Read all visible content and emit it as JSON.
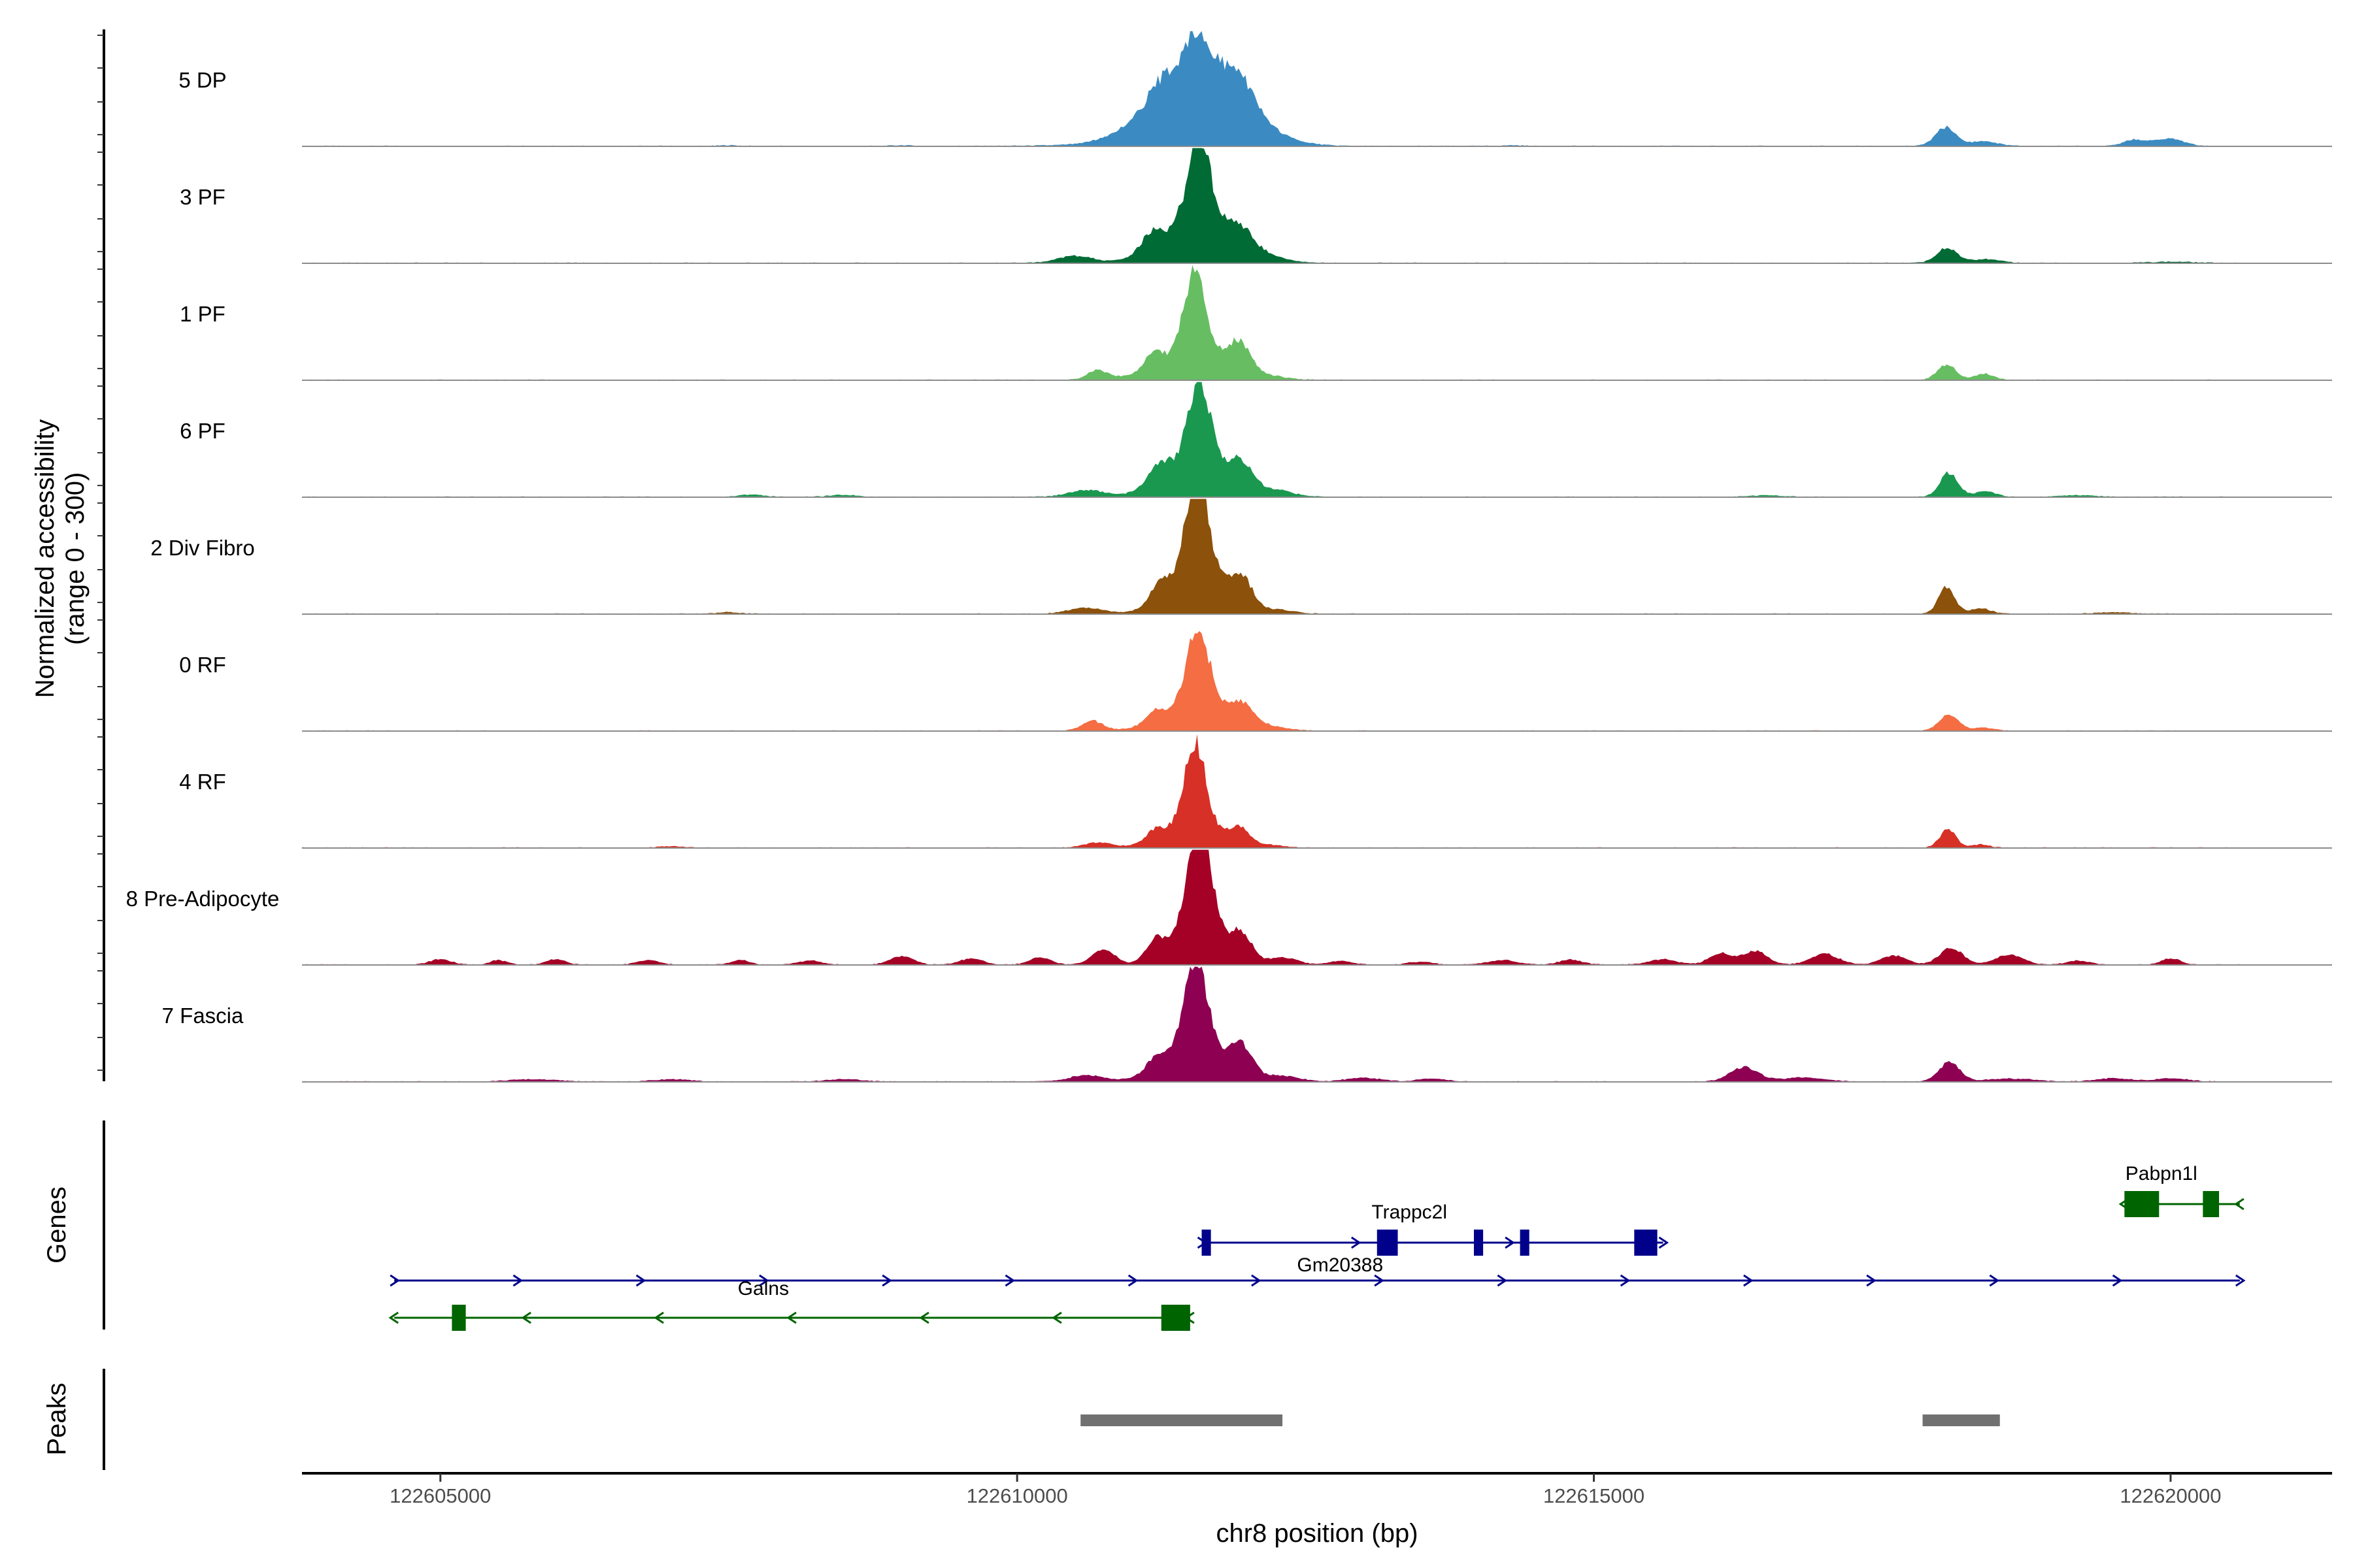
{
  "chart_data": {
    "type": "area",
    "ylabel_line1": "Normalized accessibility",
    "ylabel_line2": "(range 0 - 300)",
    "xlabel": "chr8 position (bp)",
    "xlim": [
      122603800,
      122621400
    ],
    "ylim": [
      0,
      300
    ],
    "x_ticks": [
      122605000,
      122610000,
      122615000,
      122620000
    ],
    "x_tick_labels": [
      "122605000",
      "122610000",
      "122615000",
      "122620000"
    ],
    "tracks": [
      {
        "name": "5 DP",
        "color": "#3B8BC2",
        "peaks": [
          [
            122610400,
            1.2,
            380
          ],
          [
            122611220,
            30,
            90
          ],
          [
            122611550,
            200,
            380
          ],
          [
            122611550,
            105,
            110
          ],
          [
            122611920,
            72,
            120
          ],
          [
            122612200,
            6,
            200
          ],
          [
            122607500,
            2,
            80
          ],
          [
            122609000,
            2,
            80
          ],
          [
            122614300,
            2,
            80
          ],
          [
            122618050,
            48,
            90
          ],
          [
            122618380,
            12,
            120
          ],
          [
            122619700,
            16,
            110
          ],
          [
            122620000,
            18,
            120
          ]
        ]
      },
      {
        "name": "3 PF",
        "color": "#006B35",
        "peaks": [
          [
            122610500,
            18,
            150
          ],
          [
            122611160,
            40,
            80
          ],
          [
            122611580,
            208,
            95
          ],
          [
            122611580,
            120,
            300
          ],
          [
            122611950,
            42,
            100
          ],
          [
            122612200,
            8,
            150
          ],
          [
            122618060,
            38,
            90
          ],
          [
            122618400,
            10,
            120
          ],
          [
            122620000,
            3,
            200
          ]
        ]
      },
      {
        "name": "1 PF",
        "color": "#67BE62",
        "peaks": [
          [
            122610700,
            24,
            90
          ],
          [
            122611180,
            35,
            70
          ],
          [
            122611540,
            204,
            90
          ],
          [
            122611540,
            80,
            300
          ],
          [
            122611930,
            68,
            90
          ],
          [
            122612200,
            6,
            150
          ],
          [
            122618060,
            40,
            80
          ],
          [
            122618380,
            16,
            80
          ]
        ]
      },
      {
        "name": "6 PF",
        "color": "#1A9850",
        "peaks": [
          [
            122610600,
            18,
            150
          ],
          [
            122611230,
            40,
            100
          ],
          [
            122611580,
            200,
            95
          ],
          [
            122611580,
            100,
            280
          ],
          [
            122611950,
            55,
            90
          ],
          [
            122612250,
            14,
            150
          ],
          [
            122607700,
            6,
            100
          ],
          [
            122608500,
            5,
            120
          ],
          [
            122618080,
            62,
            80
          ],
          [
            122618400,
            14,
            90
          ],
          [
            122616500,
            4,
            150
          ],
          [
            122619200,
            4,
            150
          ]
        ]
      },
      {
        "name": "2 Div Fibro",
        "color": "#8C510A",
        "peaks": [
          [
            122610600,
            16,
            150
          ],
          [
            122611230,
            36,
            80
          ],
          [
            122611560,
            250,
            90
          ],
          [
            122611560,
            120,
            240
          ],
          [
            122611950,
            70,
            90
          ],
          [
            122612250,
            10,
            150
          ],
          [
            122607500,
            4,
            100
          ],
          [
            122618060,
            70,
            70
          ],
          [
            122618350,
            14,
            90
          ],
          [
            122619500,
            4,
            150
          ]
        ]
      },
      {
        "name": "0 RF",
        "color": "#F46D43",
        "peaks": [
          [
            122610650,
            26,
            90
          ],
          [
            122611200,
            26,
            80
          ],
          [
            122611570,
            198,
            95
          ],
          [
            122611570,
            70,
            280
          ],
          [
            122611950,
            44,
            100
          ],
          [
            122612200,
            8,
            150
          ],
          [
            122618080,
            44,
            80
          ],
          [
            122618380,
            8,
            90
          ]
        ]
      },
      {
        "name": "4 RF",
        "color": "#D73027",
        "peaks": [
          [
            122610700,
            14,
            120
          ],
          [
            122611200,
            28,
            80
          ],
          [
            122611540,
            218,
            90
          ],
          [
            122611540,
            60,
            250
          ],
          [
            122611930,
            40,
            80
          ],
          [
            122612200,
            6,
            120
          ],
          [
            122607000,
            4,
            100
          ],
          [
            122618070,
            48,
            70
          ],
          [
            122618350,
            8,
            80
          ]
        ]
      },
      {
        "name": "8 Pre-Adipocyte",
        "color": "#A50026",
        "peaks": [
          [
            122605000,
            14,
            90
          ],
          [
            122605500,
            12,
            70
          ],
          [
            122606000,
            14,
            80
          ],
          [
            122606800,
            12,
            90
          ],
          [
            122607600,
            12,
            80
          ],
          [
            122608200,
            10,
            100
          ],
          [
            122609000,
            22,
            100
          ],
          [
            122609600,
            16,
            100
          ],
          [
            122610200,
            20,
            90
          ],
          [
            122610750,
            38,
            100
          ],
          [
            122611200,
            56,
            90
          ],
          [
            122611580,
            260,
            90
          ],
          [
            122611580,
            140,
            180
          ],
          [
            122611950,
            72,
            90
          ],
          [
            122612300,
            20,
            120
          ],
          [
            122612800,
            10,
            100
          ],
          [
            122613500,
            8,
            100
          ],
          [
            122614200,
            12,
            120
          ],
          [
            122614800,
            12,
            100
          ],
          [
            122615600,
            14,
            120
          ],
          [
            122616100,
            30,
            100
          ],
          [
            122616400,
            36,
            100
          ],
          [
            122617000,
            28,
            120
          ],
          [
            122617600,
            24,
            110
          ],
          [
            122618100,
            44,
            100
          ],
          [
            122618600,
            26,
            120
          ],
          [
            122619200,
            10,
            100
          ],
          [
            122620000,
            16,
            80
          ]
        ]
      },
      {
        "name": "7 Fascia",
        "color": "#8E0152",
        "peaks": [
          [
            122610600,
            16,
            150
          ],
          [
            122611200,
            28,
            80
          ],
          [
            122611550,
            210,
            95
          ],
          [
            122611550,
            100,
            260
          ],
          [
            122611950,
            70,
            90
          ],
          [
            122612300,
            14,
            150
          ],
          [
            122613000,
            10,
            150
          ],
          [
            122613600,
            8,
            120
          ],
          [
            122616300,
            38,
            120
          ],
          [
            122616800,
            10,
            200
          ],
          [
            122618080,
            50,
            90
          ],
          [
            122618600,
            8,
            200
          ],
          [
            122619500,
            8,
            150
          ],
          [
            122620000,
            8,
            150
          ],
          [
            122605800,
            6,
            200
          ],
          [
            122607000,
            6,
            150
          ],
          [
            122608500,
            6,
            150
          ]
        ]
      }
    ],
    "genes": [
      {
        "name": "Pabpn1l",
        "strand": "-",
        "color": "#006400",
        "start": 122619600,
        "end": 122620600,
        "row": 0,
        "exons": [
          [
            122619600,
            122619900
          ],
          [
            122620280,
            122620420
          ]
        ],
        "label_pos": 122619920
      },
      {
        "name": "Trappc2l",
        "strand": "+",
        "color": "#00008B",
        "start": 122611600,
        "end": 122615600,
        "row": 1,
        "exons": [
          [
            122611600,
            122611680
          ],
          [
            122613120,
            122613300
          ],
          [
            122613960,
            122614040
          ],
          [
            122614360,
            122614440
          ],
          [
            122615350,
            122615550
          ]
        ],
        "label_pos": 122613400
      },
      {
        "name": "Gm20388",
        "strand": "+",
        "color": "#00008B",
        "start": 122604600,
        "end": 122620600,
        "row": 2,
        "exons": [],
        "label_pos": 122612800
      },
      {
        "name": "Galns",
        "strand": "-",
        "color": "#006400",
        "start": 122604600,
        "end": 122611500,
        "row": 3,
        "exons": [
          [
            122605100,
            122605220
          ],
          [
            122611250,
            122611500
          ]
        ],
        "label_pos": 122607800
      }
    ],
    "peaks_track": [
      [
        122610550,
        122612300
      ],
      [
        122617850,
        122618520
      ]
    ],
    "panel_titles": {
      "genes": "Genes",
      "peaks": "Peaks"
    }
  }
}
